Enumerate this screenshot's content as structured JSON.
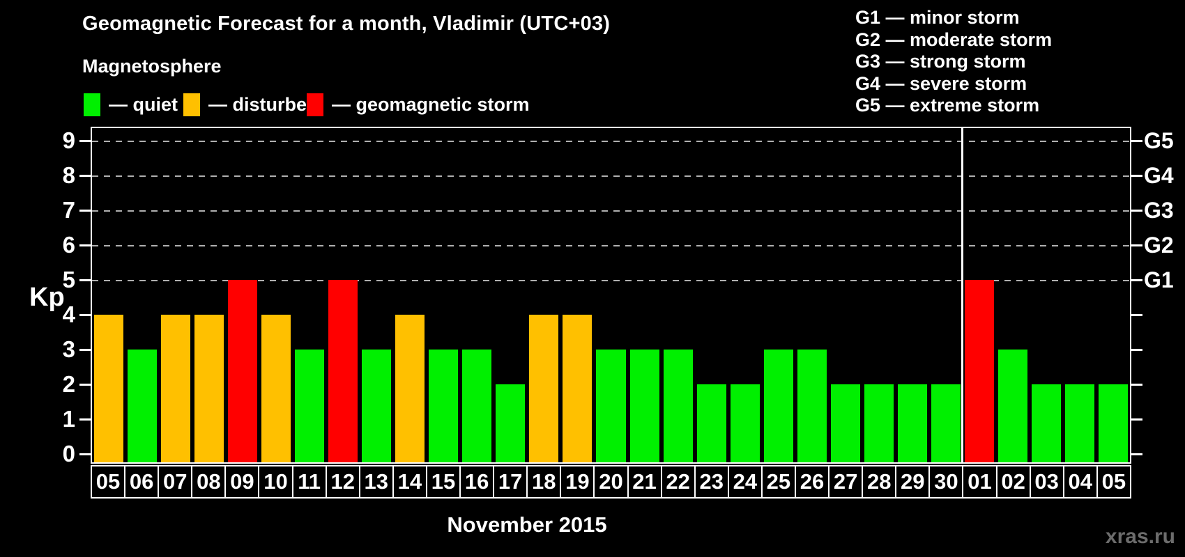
{
  "header": {
    "title": "Geomagnetic Forecast for a month, Vladimir (UTC+03)"
  },
  "legend": {
    "title": "Magnetosphere",
    "items": [
      {
        "key": "quiet",
        "label": "— quiet",
        "color": "#00f000"
      },
      {
        "key": "disturbed",
        "label": "— disturbed",
        "color": "#ffc000"
      },
      {
        "key": "storm",
        "label": "— geomagnetic storm",
        "color": "#ff0000"
      }
    ]
  },
  "storm_scale": {
    "items": [
      {
        "code": "G1",
        "text": "G1 — minor storm"
      },
      {
        "code": "G2",
        "text": "G2 — moderate storm"
      },
      {
        "code": "G3",
        "text": "G3 — strong storm"
      },
      {
        "code": "G4",
        "text": "G4 — severe storm"
      },
      {
        "code": "G5",
        "text": "G5 — extreme storm"
      }
    ]
  },
  "axes": {
    "y_label": "Kp",
    "x_label": "November 2015"
  },
  "watermark": "xras.ru",
  "chart_data": {
    "type": "bar",
    "title": "Geomagnetic Forecast for a month, Vladimir (UTC+03)",
    "ylabel": "Kp",
    "xlabel": "November 2015",
    "ylim": [
      0,
      9.6
    ],
    "yticks": [
      0,
      1,
      2,
      3,
      4,
      5,
      6,
      7,
      8,
      9
    ],
    "gridlines_at_kp": [
      5,
      6,
      7,
      8,
      9
    ],
    "grid_style": "dashed",
    "legend_position": "top",
    "right_axis": [
      {
        "kp": 5,
        "label": "G1"
      },
      {
        "kp": 6,
        "label": "G2"
      },
      {
        "kp": 7,
        "label": "G3"
      },
      {
        "kp": 8,
        "label": "G4"
      },
      {
        "kp": 9,
        "label": "G5"
      }
    ],
    "categories": [
      "05",
      "06",
      "07",
      "08",
      "09",
      "10",
      "11",
      "12",
      "13",
      "14",
      "15",
      "16",
      "17",
      "18",
      "19",
      "20",
      "21",
      "22",
      "23",
      "24",
      "25",
      "26",
      "27",
      "28",
      "29",
      "30",
      "01",
      "02",
      "03",
      "04",
      "05"
    ],
    "values": [
      4,
      3,
      4,
      4,
      5,
      4,
      3,
      5,
      3,
      4,
      3,
      3,
      2,
      4,
      4,
      3,
      3,
      3,
      2,
      2,
      3,
      3,
      2,
      2,
      2,
      2,
      5,
      3,
      2,
      2,
      2
    ],
    "statuses": [
      "disturbed",
      "quiet",
      "disturbed",
      "disturbed",
      "storm",
      "disturbed",
      "quiet",
      "storm",
      "quiet",
      "disturbed",
      "quiet",
      "quiet",
      "quiet",
      "disturbed",
      "disturbed",
      "quiet",
      "quiet",
      "quiet",
      "quiet",
      "quiet",
      "quiet",
      "quiet",
      "quiet",
      "quiet",
      "quiet",
      "quiet",
      "storm",
      "quiet",
      "quiet",
      "quiet",
      "quiet"
    ],
    "month_boundary_index": 26
  }
}
